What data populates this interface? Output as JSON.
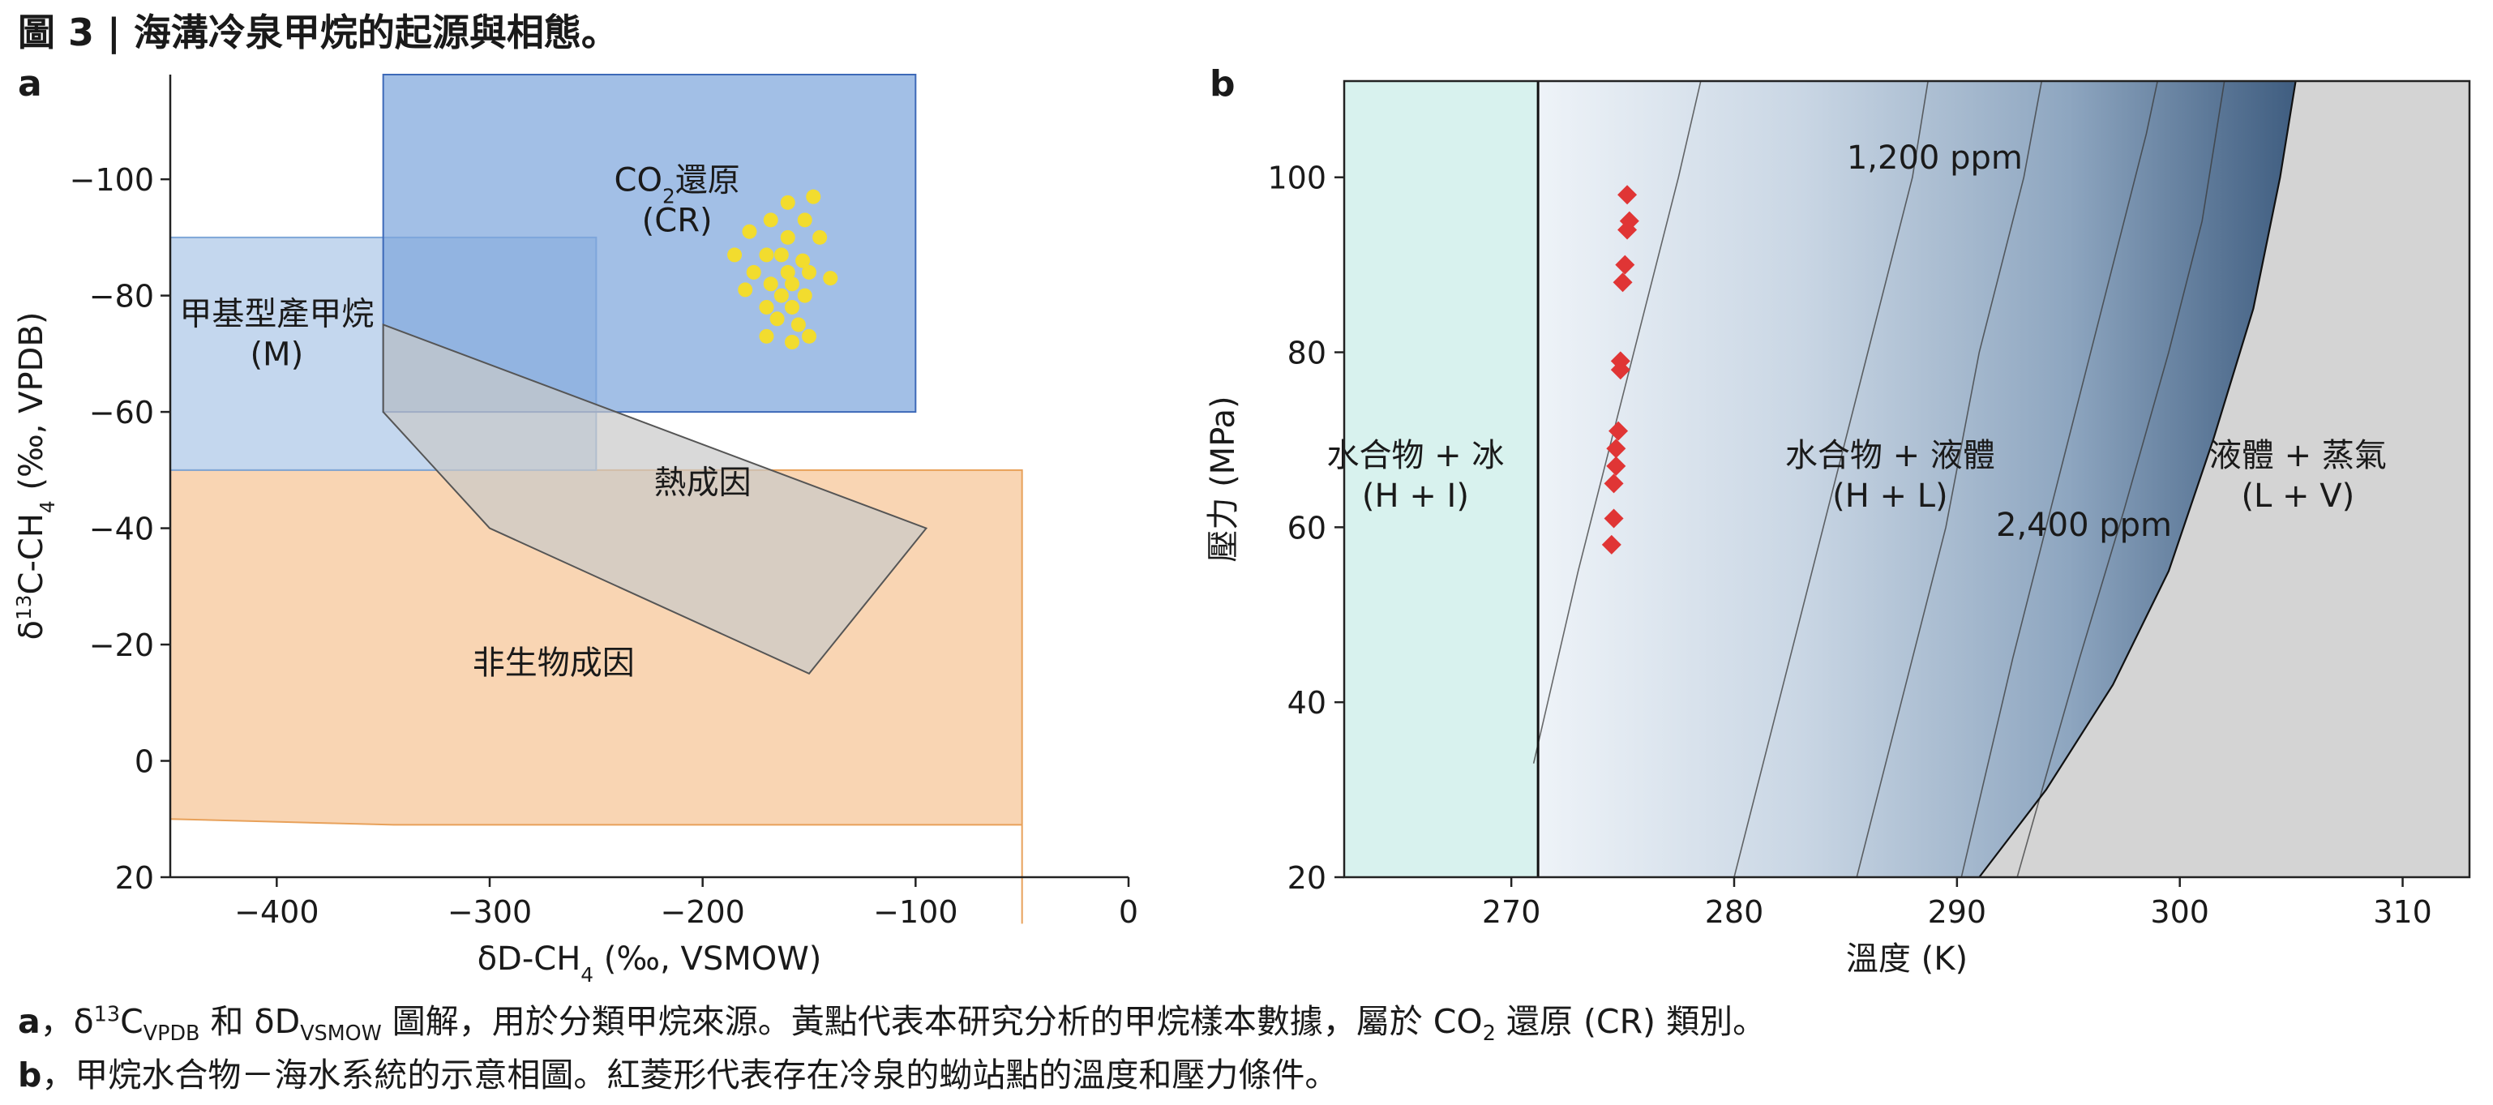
{
  "figure": {
    "title": "圖 3 | 海溝冷泉甲烷的起源與相態。",
    "caption_a": {
      "letter": "a",
      "text_1": "，δ",
      "sup_1": "13",
      "text_2": "C",
      "sub_1": "VPDB",
      "text_3": " 和 δD",
      "sub_2": "VSMOW",
      "text_4": " 圖解，用於分類甲烷來源。黃點代表本研究分析的甲烷樣本數據，屬於 CO",
      "sub_3": "2",
      "text_5": " 還原 (CR) 類別。"
    },
    "caption_b": {
      "letter": "b",
      "text": "，甲烷水合物－海水系統的示意相圖。紅菱形代表存在冷泉的蚴站點的溫度和壓力條件。"
    }
  },
  "chart_data": [
    {
      "panel": "a",
      "type": "scatter",
      "xlabel": "δD-CH₄ (‰, VSMOW)",
      "ylabel": "δ13C-CH₄ (‰, VPDB)",
      "xlim": [
        -450,
        0
      ],
      "ylim": [
        20,
        -118
      ],
      "y_inverted": true,
      "x_ticks": [
        -400,
        -300,
        -200,
        -100,
        0
      ],
      "x_tick_labels": [
        "−400",
        "−300",
        "−200",
        "−100",
        "0"
      ],
      "y_ticks": [
        -100,
        -80,
        -60,
        -40,
        -20,
        0,
        20
      ],
      "y_tick_labels": [
        "−100",
        "−80",
        "−60",
        "−40",
        "−20",
        "0",
        "20"
      ],
      "grid": false,
      "regions": [
        {
          "name": "非生物成因",
          "label_lines": [
            "非生物成因"
          ],
          "color": "#f7c596",
          "edge": "#e8a15a",
          "polygon": [
            [
              -450,
              -50
            ],
            [
              -50,
              -50
            ],
            [
              -50,
              28
            ],
            [
              -50,
              11
            ],
            [
              -345,
              11
            ],
            [
              -450,
              10
            ]
          ],
          "label_pos": [
            -270,
            -15
          ]
        },
        {
          "name": "甲基型產甲烷 (M)",
          "label_lines": [
            "甲基型產甲烷",
            "(M)"
          ],
          "color": "#adc7e8",
          "edge": "#7ea6d8",
          "polygon": [
            [
              -450,
              -90
            ],
            [
              -250,
              -90
            ],
            [
              -250,
              -50
            ],
            [
              -450,
              -50
            ]
          ],
          "label_pos": [
            -400,
            -75
          ]
        },
        {
          "name": "CO₂還原 (CR)",
          "label_lines": [
            "CO₂還原",
            "(CR)"
          ],
          "color": "#7ea6dc",
          "edge": "#3d69b8",
          "polygon": [
            [
              -350,
              -118
            ],
            [
              -100,
              -118
            ],
            [
              -100,
              -60
            ],
            [
              -350,
              -60
            ]
          ],
          "label_pos": [
            -212,
            -98
          ]
        },
        {
          "name": "熱成因",
          "label_lines": [
            "熱成因"
          ],
          "color": "#c9c9c9",
          "edge": "#555555",
          "polygon": [
            [
              -350,
              -75
            ],
            [
              -95,
              -40
            ],
            [
              -150,
              -15
            ],
            [
              -300,
              -40
            ],
            [
              -350,
              -60
            ]
          ],
          "label_pos": [
            -200,
            -46
          ]
        }
      ],
      "series": [
        {
          "color": "#f2dc2e",
          "points": [
            [
              -160,
              -96
            ],
            [
              -148,
              -97
            ],
            [
              -168,
              -93
            ],
            [
              -152,
              -93
            ],
            [
              -178,
              -91
            ],
            [
              -160,
              -90
            ],
            [
              -145,
              -90
            ],
            [
              -185,
              -87
            ],
            [
              -170,
              -87
            ],
            [
              -163,
              -87
            ],
            [
              -153,
              -86
            ],
            [
              -176,
              -84
            ],
            [
              -160,
              -84
            ],
            [
              -150,
              -84
            ],
            [
              -168,
              -82
            ],
            [
              -158,
              -82
            ],
            [
              -140,
              -83
            ],
            [
              -180,
              -81
            ],
            [
              -163,
              -80
            ],
            [
              -152,
              -80
            ],
            [
              -170,
              -78
            ],
            [
              -158,
              -78
            ],
            [
              -165,
              -76
            ],
            [
              -155,
              -75
            ],
            [
              -170,
              -73
            ],
            [
              -158,
              -72
            ],
            [
              -150,
              -73
            ]
          ]
        }
      ]
    },
    {
      "panel": "b",
      "type": "area",
      "xlabel": "溫度 (K)",
      "ylabel": "壓力 (MPa)",
      "xlim": [
        262.5,
        313
      ],
      "ylim": [
        20,
        111
      ],
      "x_ticks": [
        270,
        280,
        290,
        300,
        310
      ],
      "y_ticks": [
        20,
        40,
        60,
        80,
        100
      ],
      "grid": false,
      "regions": [
        {
          "name": "水合物 + 冰",
          "label_lines": [
            "水合物 + 冰",
            "(H + I)"
          ],
          "color": "#d8f2ee",
          "label_pos": [
            265.7,
            67
          ]
        },
        {
          "name": "水合物 + 液體",
          "label_lines": [
            "水合物 + 液體",
            "(H + L)"
          ],
          "color": "#a9bed3",
          "label_pos": [
            287,
            67
          ]
        },
        {
          "name": "液體 + 蒸氣",
          "label_lines": [
            "液體 + 蒸氣",
            "(L + V)"
          ],
          "color": "#d4d4d4",
          "label_pos": [
            305.3,
            67
          ]
        }
      ],
      "ice_boundary_x": 271.2,
      "lv_boundary": [
        [
          291,
          20
        ],
        [
          294,
          30
        ],
        [
          297,
          42
        ],
        [
          299.5,
          55
        ],
        [
          301.5,
          70
        ],
        [
          303.3,
          85
        ],
        [
          304.5,
          100
        ],
        [
          305.2,
          111
        ]
      ],
      "contours": [
        {
          "label": "",
          "points": [
            [
              271,
              33
            ],
            [
              273,
              55
            ],
            [
              274.5,
              70
            ],
            [
              276,
              85
            ],
            [
              277.5,
              100
            ],
            [
              278.5,
              111
            ]
          ]
        },
        {
          "label": "1,200 ppm",
          "points": [
            [
              280,
              20
            ],
            [
              282.5,
              45
            ],
            [
              284,
              60
            ],
            [
              286,
              80
            ],
            [
              288,
              100
            ],
            [
              288.7,
              111
            ]
          ]
        },
        {
          "label": "",
          "points": [
            [
              285.5,
              20
            ],
            [
              287.5,
              40
            ],
            [
              289.5,
              60
            ],
            [
              291,
              80
            ],
            [
              293,
              100
            ],
            [
              293.8,
              111
            ]
          ]
        },
        {
          "label": "",
          "points": [
            [
              290.2,
              20
            ],
            [
              292.5,
              45
            ],
            [
              294.5,
              65
            ],
            [
              296.5,
              85
            ],
            [
              298.5,
              105
            ],
            [
              299,
              111
            ]
          ]
        },
        {
          "label": "2,400 ppm",
          "points": [
            [
              292.7,
              20
            ],
            [
              295.5,
              45
            ],
            [
              297.5,
              62
            ],
            [
              299.5,
              80
            ],
            [
              301,
              95
            ],
            [
              302,
              111
            ]
          ]
        }
      ],
      "contour_labels": [
        {
          "text": "1,200 ppm",
          "pos": [
            289,
            101
          ]
        },
        {
          "text": "2,400 ppm",
          "pos": [
            295.7,
            59
          ]
        }
      ],
      "series": [
        {
          "color": "#e03535",
          "marker": "diamond",
          "points": [
            [
              275.2,
              98
            ],
            [
              275.3,
              95
            ],
            [
              275.2,
              94
            ],
            [
              275.1,
              90
            ],
            [
              275,
              88
            ],
            [
              274.9,
              79
            ],
            [
              274.9,
              78
            ],
            [
              274.8,
              71
            ],
            [
              274.7,
              69
            ],
            [
              274.7,
              67
            ],
            [
              274.6,
              65
            ],
            [
              274.6,
              61
            ],
            [
              274.5,
              58
            ]
          ]
        }
      ]
    }
  ]
}
